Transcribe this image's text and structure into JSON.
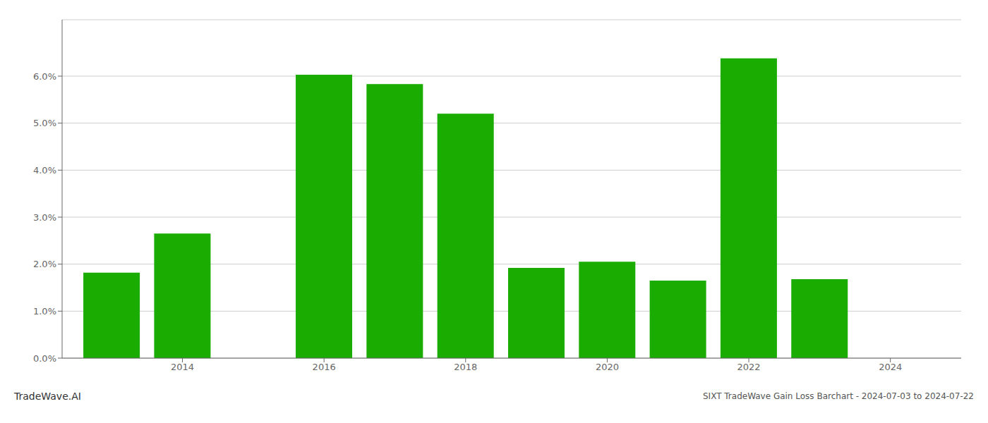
{
  "chart_data": {
    "type": "bar",
    "title": "SIXT TradeWave Gain Loss Barchart - 2024-07-03 to 2024-07-22",
    "annotations": [
      "TradeWave.AI"
    ],
    "x": [
      2013,
      2014,
      2016,
      2017,
      2018,
      2019,
      2020,
      2021,
      2022,
      2023
    ],
    "values": [
      0.0182,
      0.0265,
      0.0603,
      0.0583,
      0.052,
      0.0192,
      0.0205,
      0.0165,
      0.0638,
      0.0168
    ],
    "color": "#1aac00",
    "xlim": [
      2012.3,
      2025.0
    ],
    "xticks": [
      2014,
      2016,
      2018,
      2020,
      2022,
      2024
    ],
    "ylim": [
      0.0,
      0.072
    ],
    "yticks": [
      {
        "value": 0.0,
        "label": "0.0%"
      },
      {
        "value": 0.01,
        "label": "1.0%"
      },
      {
        "value": 0.02,
        "label": "2.0%"
      },
      {
        "value": 0.03,
        "label": "3.0%"
      },
      {
        "value": 0.04,
        "label": "4.0%"
      },
      {
        "value": 0.05,
        "label": "5.0%"
      },
      {
        "value": 0.06,
        "label": "6.0%"
      }
    ],
    "grid": true
  }
}
